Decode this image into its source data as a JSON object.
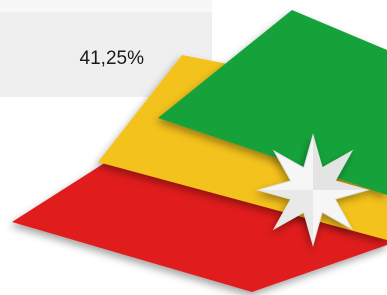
{
  "stat": {
    "value": "41,25%"
  }
}
